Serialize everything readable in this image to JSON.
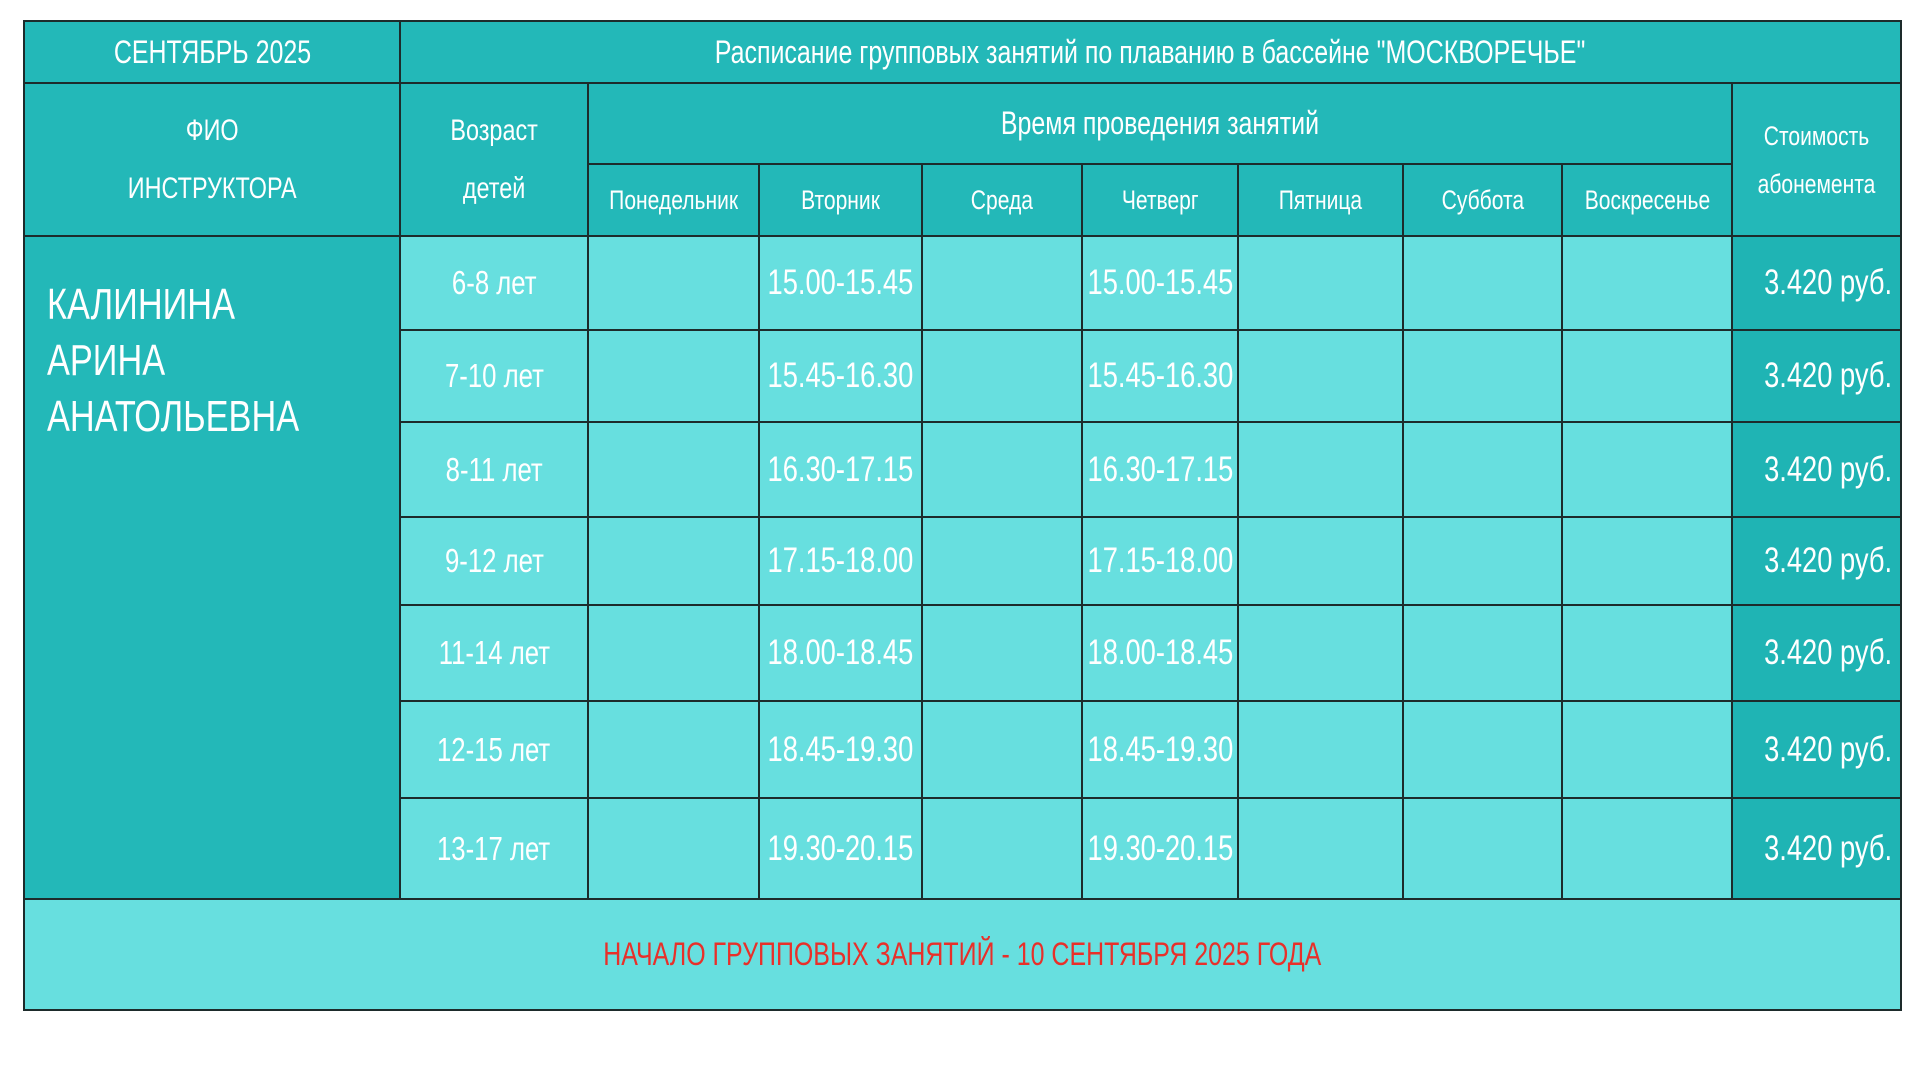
{
  "header": {
    "month": "СЕНТЯБРЬ 2025",
    "title": "Расписание групповых занятий по плаванию в бассейне \"МОСКВОРЕЧЬЕ\""
  },
  "columns": {
    "instructor": [
      "ФИО",
      "ИНСТРУКТОРА"
    ],
    "age": [
      "Возраст",
      "детей"
    ],
    "time_group": "Время проведения занятий",
    "price": [
      "Стоимость",
      "абонемента"
    ],
    "days": [
      "Понедельник",
      "Вторник",
      "Среда",
      "Четверг",
      "Пятница",
      "Суббота",
      "Воскресенье"
    ]
  },
  "instructor": [
    "КАЛИНИНА",
    "АРИНА",
    "АНАТОЛЬЕВНА"
  ],
  "rows": [
    {
      "age": "6-8 лет",
      "tue": "15.00-15.45",
      "thu": "15.00-15.45",
      "price": "3.420 руб."
    },
    {
      "age": "7-10 лет",
      "tue": "15.45-16.30",
      "thu": "15.45-16.30",
      "price": "3.420 руб."
    },
    {
      "age": "8-11 лет",
      "tue": "16.30-17.15",
      "thu": "16.30-17.15",
      "price": "3.420 руб."
    },
    {
      "age": "9-12 лет",
      "tue": "17.15-18.00",
      "thu": "17.15-18.00",
      "price": "3.420 руб."
    },
    {
      "age": "11-14 лет",
      "tue": "18.00-18.45",
      "thu": "18.00-18.45",
      "price": "3.420 руб."
    },
    {
      "age": "12-15 лет",
      "tue": "18.45-19.30",
      "thu": "18.45-19.30",
      "price": "3.420 руб."
    },
    {
      "age": "13-17 лет",
      "tue": "19.30-20.15",
      "thu": "19.30-20.15",
      "price": "3.420 руб."
    }
  ],
  "footer": "НАЧАЛО ГРУППОВЫХ ЗАНЯТИЙ - 10 СЕНТЯБРЯ 2025 ГОДА",
  "colors": {
    "header": "#23b8b8",
    "cell": "#67dfdf",
    "footer_text": "#e8302a"
  }
}
